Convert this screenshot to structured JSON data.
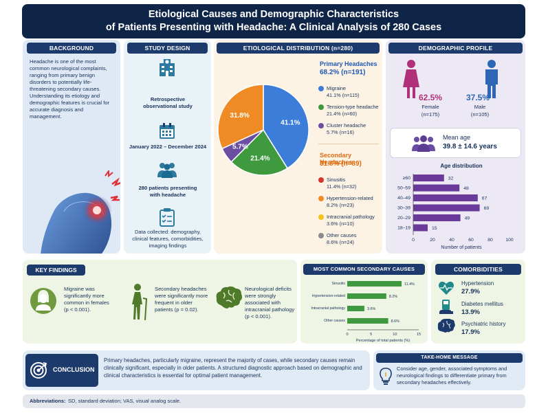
{
  "title": {
    "line1": "Etiological Causes and Demographic Characteristics",
    "line2": "of Patients Presenting with Headache: A Clinical Analysis of 280 Cases"
  },
  "background": {
    "header": "BACKGROUND",
    "text": "Headache is one of the most common neurological complaints, ranging from primary benign disorders to potentially life-threatening secondary causes. Understanding its etiology and demographic features is crucial for accurate diagnosis and management."
  },
  "study_design": {
    "header": "STUDY DESIGN",
    "items": [
      {
        "text": "Retrospective observational study",
        "icon": "hospital-icon"
      },
      {
        "text": "January 2022 – December 2024",
        "icon": "calendar-icon"
      },
      {
        "text": "280 patients presenting with headache",
        "icon": "people-icon"
      },
      {
        "text": "Data collected: demography, clinical features, comorbidities, imaging findings",
        "icon": "clipboard-icon"
      }
    ]
  },
  "etiology": {
    "header": "ETIOLOGICAL DISTRIBUTION (n=280)",
    "pie_labels": [
      "41.1%",
      "21.4%",
      "5.7%",
      "31.8%"
    ],
    "primary": {
      "title": "Primary Headaches",
      "pct": "68.2% (n=191)",
      "items": [
        {
          "name": "Migraine",
          "value": "41.1% (n=115)",
          "color": "#3b7dd8"
        },
        {
          "name": "Tension-type headache",
          "value": "21.4% (n=60)",
          "color": "#3f9a3f"
        },
        {
          "name": "Cluster headache",
          "value": "5.7% (n=16)",
          "color": "#6b4ea2"
        }
      ]
    },
    "secondary": {
      "title": "Secondary Headaches",
      "pct": "31.8% (n=89)",
      "items": [
        {
          "name": "Sinusitis",
          "value": "11.4% (n=32)",
          "color": "#d8342c"
        },
        {
          "name": "Hypertension-related",
          "value": "8.2% (n=23)",
          "color": "#f08a24"
        },
        {
          "name": "Intracranial pathology",
          "value": "3.6% (n=10)",
          "color": "#f2c318"
        },
        {
          "name": "Other causes",
          "value": "8.6% (n=24)",
          "color": "#8a8a8a"
        }
      ]
    }
  },
  "chart_data": [
    {
      "type": "pie",
      "categories": [
        "Migraine",
        "Tension-type headache",
        "Cluster headache",
        "Secondary headaches"
      ],
      "values": [
        41.1,
        21.4,
        5.7,
        31.8
      ],
      "colors": [
        "#3b7dd8",
        "#3f9a3f",
        "#6b4ea2",
        "#f08a24"
      ]
    },
    {
      "type": "bar",
      "orientation": "horizontal",
      "title": "Age distribution",
      "categories": [
        "≥60",
        "50–59",
        "40–49",
        "30–39",
        "20–29",
        "18–19"
      ],
      "values": [
        32,
        48,
        67,
        69,
        49,
        15
      ],
      "xlabel": "Number of patients",
      "xlim": [
        0,
        100
      ],
      "xticks": [
        "0",
        "20",
        "40",
        "60",
        "80",
        "100"
      ],
      "color": "#6a3a9a"
    },
    {
      "type": "bar",
      "orientation": "horizontal",
      "title": "MOST COMMON SECONDARY CAUSES",
      "categories": [
        "Sinusitis",
        "Hypertension-related",
        "Intracranial pathology",
        "Other causes"
      ],
      "values": [
        11.4,
        8.2,
        3.6,
        8.6
      ],
      "value_labels": [
        "11.4%",
        "8.2%",
        "3.6%",
        "8.6%"
      ],
      "xlabel": "Percentage of total patients (%)",
      "xlim": [
        0,
        15
      ],
      "xticks": [
        "0",
        "5",
        "10",
        "15"
      ],
      "color": "#3f9a3f"
    }
  ],
  "demographics": {
    "header": "DEMOGRAPHIC PROFILE",
    "female_pct": "62.5%",
    "female_label": "Female",
    "female_n": "(n=175)",
    "male_pct": "37.5%",
    "male_label": "Male",
    "male_n": "(n=105)",
    "mean_age_label": "Mean age",
    "mean_age_value": "39.8 ± 14.6 years"
  },
  "key_findings": {
    "header": "KEY FINDINGS",
    "items": [
      {
        "text": "Migraine was significantly more common in females (p < 0.001).",
        "icon": "female-head-icon"
      },
      {
        "text": "Secondary headaches were significantly more frequent in older patients (p = 0.02).",
        "icon": "elderly-icon"
      },
      {
        "text": "Neurological deficits were strongly associated with intracranial pathology (p < 0.001).",
        "icon": "brain-icon"
      }
    ]
  },
  "comorbidities": {
    "header": "COMORBIDITIES",
    "items": [
      {
        "name": "Hypertension",
        "value": "27.9%",
        "icon": "heartbeat-icon"
      },
      {
        "name": "Diabetes mellitus",
        "value": "13.9%",
        "icon": "glucose-icon"
      },
      {
        "name": "Psychiatric history",
        "value": "17.9%",
        "icon": "brain-icon"
      }
    ]
  },
  "conclusion": {
    "label": "CONCLUSION",
    "text": "Primary headaches, particularly migraine, represent the majority of cases, while secondary causes remain clinically significant, especially in older patients. A structured diagnostic approach based on demographic and clinical characteristics is essential for optimal patient management."
  },
  "take_home": {
    "header": "TAKE-HOME MESSAGE",
    "text": "Consider age, gender, associated symptoms and neurological findings to differentiate primary from secondary headaches effectively."
  },
  "abbreviations": {
    "label": "Abbreviations:",
    "text": "SD, standard deviation; VAS, visual analog scale."
  }
}
